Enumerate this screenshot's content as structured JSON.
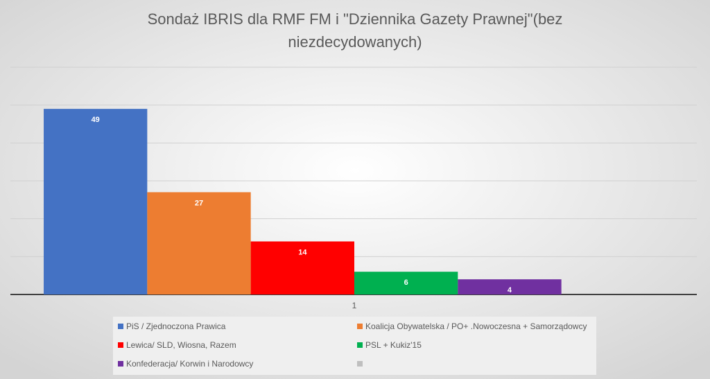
{
  "chart_data": {
    "type": "bar",
    "title_lines": [
      "Sondaż IBRIS dla RMF FM i \"Dziennika Gazety Prawnej\"(bez",
      "niezdecydowanych)"
    ],
    "categories": [
      "1"
    ],
    "series": [
      {
        "name": "PiS / Zjednoczona Prawica",
        "color": "#4472c4",
        "values": [
          49
        ]
      },
      {
        "name": "Koalicja Obywatelska / PO+ .Nowoczesna + Samorządowcy",
        "color": "#ed7d31",
        "values": [
          27
        ]
      },
      {
        "name": "Lewica/ SLD, Wiosna, Razem",
        "color": "#ff0000",
        "values": [
          14
        ]
      },
      {
        "name": "PSL + Kukiz'15",
        "color": "#00b050",
        "values": [
          6
        ]
      },
      {
        "name": "Konfederacja/ Korwin i Narodowcy",
        "color": "#7030a0",
        "values": [
          4
        ]
      },
      {
        "color": "#bfbfbf",
        "values": [
          null
        ]
      }
    ],
    "ylim": [
      0,
      60
    ],
    "yticks": [
      0,
      10,
      20,
      30,
      40,
      50,
      60
    ],
    "grid": true,
    "legend": "bottom"
  }
}
